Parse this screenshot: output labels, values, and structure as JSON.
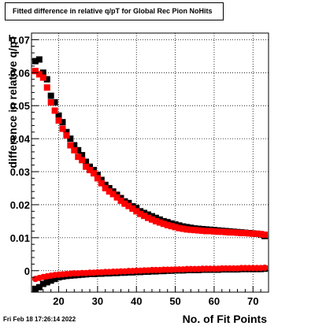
{
  "header": {
    "title": "Fitted difference in relative q/pT for Global Rec Pion NoHits",
    "timestamp": "Fri Feb 18 17:26:14 2022"
  },
  "chart_data": {
    "type": "scatter",
    "title": "Fitted difference in relative q/pT for Global Rec Pion NoHits",
    "xlabel": "No. of Fit Points",
    "ylabel": "difference in relative q/pT",
    "xlim": [
      13,
      74
    ],
    "ylim": [
      -0.0065,
      0.072
    ],
    "x_ticks": [
      20,
      30,
      40,
      50,
      60,
      70
    ],
    "y_ticks": [
      0,
      0.01,
      0.02,
      0.03,
      0.04,
      0.05,
      0.06,
      0.07
    ],
    "y_tick_labels": [
      "0",
      "0.01",
      "0.02",
      "0.03",
      "0.04",
      "0.05",
      "0.06",
      "0.07"
    ],
    "grid": true,
    "series": [
      {
        "color": "#000000",
        "marker": "square",
        "x": [
          14,
          15,
          16,
          17,
          18,
          19,
          20,
          21,
          22,
          23,
          24,
          25,
          26,
          27,
          28,
          29,
          30,
          31,
          32,
          33,
          34,
          35,
          36,
          37,
          38,
          39,
          40,
          41,
          42,
          43,
          44,
          45,
          46,
          47,
          48,
          49,
          50,
          51,
          52,
          53,
          54,
          55,
          56,
          57,
          58,
          59,
          60,
          61,
          62,
          63,
          64,
          65,
          66,
          67,
          68,
          69,
          70,
          71,
          72,
          73
        ],
        "y": [
          0.0635,
          0.064,
          0.06,
          0.058,
          0.053,
          0.051,
          0.047,
          0.045,
          0.042,
          0.04,
          0.038,
          0.0365,
          0.035,
          0.033,
          0.0315,
          0.0305,
          0.029,
          0.0275,
          0.026,
          0.025,
          0.024,
          0.023,
          0.022,
          0.021,
          0.0205,
          0.0195,
          0.019,
          0.018,
          0.0175,
          0.017,
          0.0165,
          0.016,
          0.0155,
          0.015,
          0.0147,
          0.0143,
          0.014,
          0.0137,
          0.0134,
          0.0132,
          0.013,
          0.0128,
          0.0127,
          0.0126,
          0.0125,
          0.0124,
          0.0123,
          0.0122,
          0.0121,
          0.012,
          0.0119,
          0.0118,
          0.0117,
          0.0116,
          0.0115,
          0.0114,
          0.0113,
          0.0112,
          0.011,
          0.0105
        ]
      },
      {
        "color": "#000000",
        "marker": "square",
        "x": [
          14,
          15,
          16,
          17,
          18,
          19,
          20,
          21,
          22,
          23,
          24,
          25,
          26,
          27,
          28,
          29,
          30,
          31,
          32,
          33,
          34,
          35,
          36,
          37,
          38,
          39,
          40,
          41,
          42,
          43,
          44,
          45,
          46,
          47,
          48,
          49,
          50,
          51,
          52,
          53,
          54,
          55,
          56,
          57,
          58,
          59,
          60,
          61,
          62,
          63,
          64,
          65,
          66,
          67,
          68,
          69,
          70,
          71,
          72,
          73
        ],
        "y": [
          -0.0055,
          -0.005,
          -0.004,
          -0.0035,
          -0.003,
          -0.0025,
          -0.002,
          -0.0018,
          -0.0016,
          -0.0015,
          -0.0014,
          -0.0013,
          -0.0012,
          -0.0011,
          -0.001,
          -0.001,
          -0.0009,
          -0.0009,
          -0.0008,
          -0.0008,
          -0.0007,
          -0.0007,
          -0.0006,
          -0.0006,
          -0.0005,
          -0.0005,
          -0.0004,
          -0.0004,
          -0.0003,
          -0.0003,
          -0.0002,
          -0.0002,
          -0.0001,
          -0.0001,
          0,
          0,
          0.0001,
          0.0001,
          0.0001,
          0.0002,
          0.0002,
          0.0002,
          0.0002,
          0.0003,
          0.0003,
          0.0003,
          0.0003,
          0.0003,
          0.0004,
          0.0004,
          0.0004,
          0.0004,
          0.0004,
          0.0005,
          0.0005,
          0.0005,
          0.0005,
          0.0005,
          0.0005,
          0.0006
        ]
      },
      {
        "color": "#ff0000",
        "marker": "square",
        "x": [
          14,
          15,
          16,
          17,
          18,
          19,
          20,
          21,
          22,
          23,
          24,
          25,
          26,
          27,
          28,
          29,
          30,
          31,
          32,
          33,
          34,
          35,
          36,
          37,
          38,
          39,
          40,
          41,
          42,
          43,
          44,
          45,
          46,
          47,
          48,
          49,
          50,
          51,
          52,
          53,
          54,
          55,
          56,
          57,
          58,
          59,
          60,
          61,
          62,
          63,
          64,
          65,
          66,
          67,
          68,
          69,
          70,
          71,
          72,
          73
        ],
        "y": [
          0.0605,
          0.0595,
          0.0585,
          0.0555,
          0.051,
          0.0485,
          0.0455,
          0.043,
          0.041,
          0.038,
          0.0365,
          0.0345,
          0.0335,
          0.0315,
          0.0305,
          0.0295,
          0.028,
          0.0265,
          0.025,
          0.024,
          0.0232,
          0.0222,
          0.0212,
          0.0203,
          0.0196,
          0.0188,
          0.018,
          0.0172,
          0.0166,
          0.016,
          0.0155,
          0.015,
          0.0146,
          0.0142,
          0.0138,
          0.0135,
          0.0132,
          0.0129,
          0.0127,
          0.0125,
          0.0124,
          0.0123,
          0.0122,
          0.0121,
          0.012,
          0.012,
          0.0119,
          0.0118,
          0.0118,
          0.0117,
          0.0116,
          0.0116,
          0.0115,
          0.0114,
          0.0114,
          0.0113,
          0.0112,
          0.0112,
          0.0111,
          0.0109
        ]
      },
      {
        "color": "#ff0000",
        "marker": "circle",
        "x": [
          14,
          15,
          16,
          17,
          18,
          19,
          20,
          21,
          22,
          23,
          24,
          25,
          26,
          27,
          28,
          29,
          30,
          31,
          32,
          33,
          34,
          35,
          36,
          37,
          38,
          39,
          40,
          41,
          42,
          43,
          44,
          45,
          46,
          47,
          48,
          49,
          50,
          51,
          52,
          53,
          54,
          55,
          56,
          57,
          58,
          59,
          60,
          61,
          62,
          63,
          64,
          65,
          66,
          67,
          68,
          69,
          70,
          71,
          72,
          73
        ],
        "y": [
          -0.0025,
          -0.0022,
          -0.0019,
          -0.0017,
          -0.0015,
          -0.0013,
          -0.0012,
          -0.0011,
          -0.001,
          -0.0009,
          -0.0008,
          -0.0008,
          -0.0007,
          -0.0007,
          -0.0006,
          -0.0006,
          -0.0005,
          -0.0005,
          -0.0004,
          -0.0004,
          -0.0003,
          -0.0003,
          -0.0002,
          -0.0002,
          -0.0001,
          -0.0001,
          0,
          0,
          0.0001,
          0.0001,
          0.0002,
          0.0002,
          0.0002,
          0.0003,
          0.0003,
          0.0003,
          0.0004,
          0.0004,
          0.0004,
          0.0005,
          0.0005,
          0.0005,
          0.0005,
          0.0006,
          0.0006,
          0.0006,
          0.0006,
          0.0006,
          0.0007,
          0.0007,
          0.0007,
          0.0007,
          0.0007,
          0.0008,
          0.0008,
          0.0008,
          0.0008,
          0.0008,
          0.0008,
          0.0009
        ]
      }
    ]
  }
}
